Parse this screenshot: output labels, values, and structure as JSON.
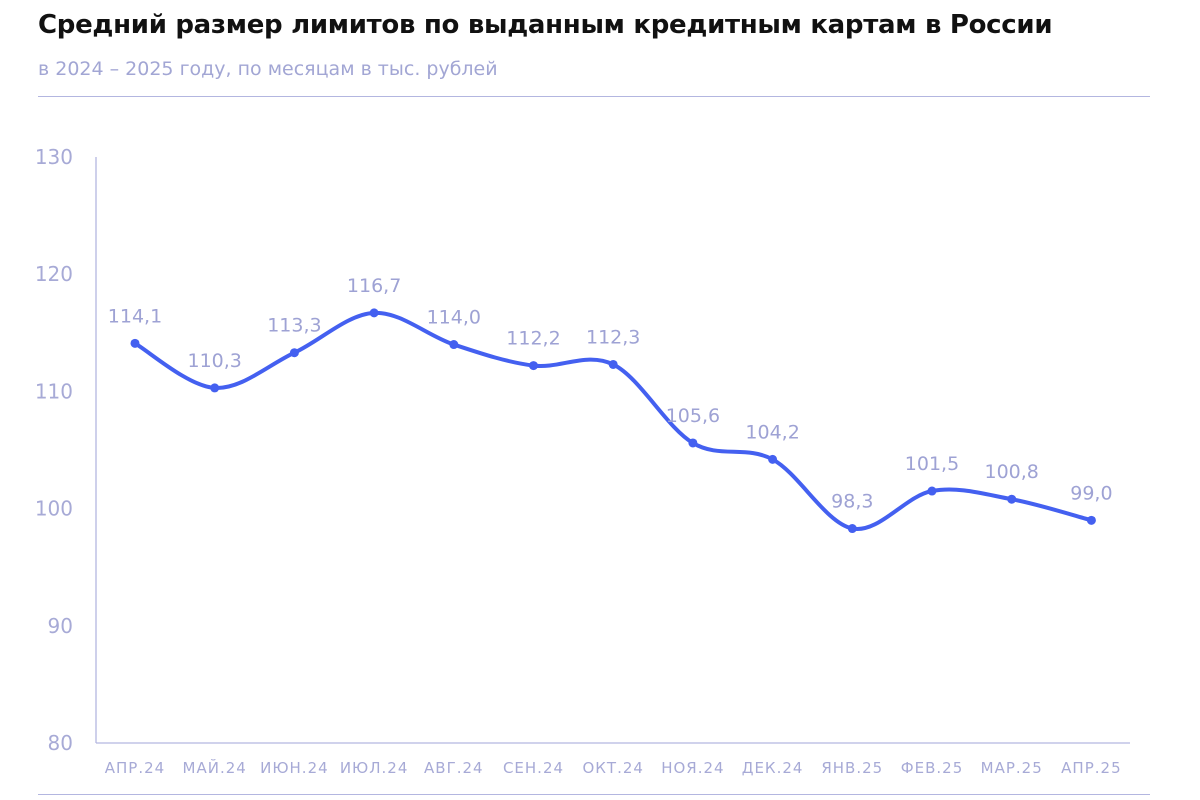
{
  "header": {
    "title": "Средний размер лимитов по выданным кредитным картам в России",
    "subtitle": "в 2024 – 2025 году, по месяцам в тыс. рублей"
  },
  "chart_data": {
    "type": "line",
    "title": "Средний размер лимитов по выданным кредитным картам в России",
    "subtitle": "в 2024 – 2025 году, по месяцам в тыс. рублей",
    "categories": [
      "АПР.24",
      "МАЙ.24",
      "ИЮН.24",
      "ИЮЛ.24",
      "АВГ.24",
      "СЕН.24",
      "ОКТ.24",
      "НОЯ.24",
      "ДЕК.24",
      "ЯНВ.25",
      "ФЕВ.25",
      "МАР.25",
      "АПР.25"
    ],
    "values": [
      114.1,
      110.3,
      113.3,
      116.7,
      114.0,
      112.2,
      112.3,
      105.6,
      104.2,
      98.3,
      101.5,
      100.8,
      99.0
    ],
    "value_labels": [
      "114,1",
      "110,3",
      "113,3",
      "116,7",
      "114,0",
      "112,2",
      "112,3",
      "105,6",
      "104,2",
      "98,3",
      "101,5",
      "100,8",
      "99,0"
    ],
    "ylim": [
      80,
      130
    ],
    "yticks": [
      80,
      90,
      100,
      110,
      120,
      130
    ],
    "xlabel": "",
    "ylabel": "",
    "grid": false,
    "line_color": "#4460f0",
    "axis_color": "#b3b6e0",
    "label_color": "#9ea2d4"
  }
}
